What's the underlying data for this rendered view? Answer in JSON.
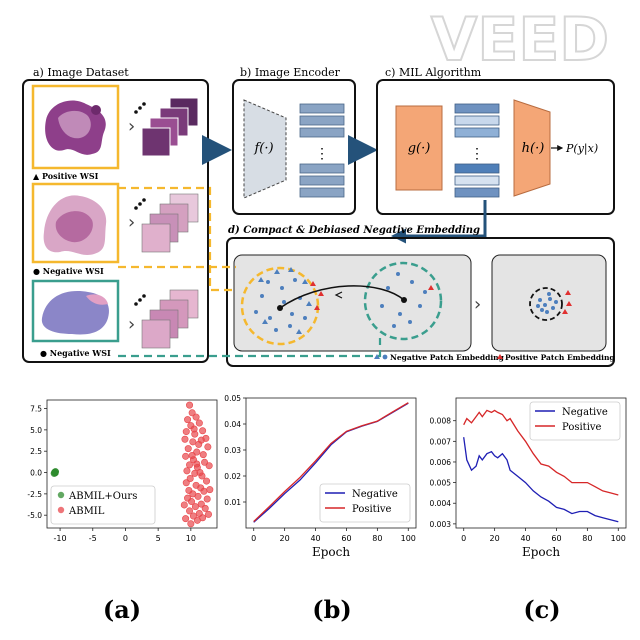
{
  "watermark": "VEED",
  "diagram": {
    "panel_a_title": "a) Image Dataset",
    "panel_b_title": "b) Image Encoder",
    "panel_c_title": "c) MIL Algorithm",
    "panel_d_title": "d) Compact & Debiased Negative Embedding",
    "wsi_labels": [
      "▲ Positive WSI",
      "● Negative WSI",
      "● Negative WSI"
    ],
    "encoder_fn": "f(·)",
    "mil_g": "g(·)",
    "mil_h": "h(·)",
    "mil_output": "P(y|x)",
    "dots": "⋮",
    "legend_negative": "Negative Patch Embedding",
    "legend_positive": "Positive Patch Embedding",
    "colors": {
      "yellow": "#f5b82e",
      "teal": "#3a9e8e",
      "navy": "#24527a",
      "orange": "#f4a676",
      "embedding_blue": "#4d7fbd",
      "positive_red": "#e03030"
    }
  },
  "bottom_labels": [
    "(a)",
    "(b)",
    "(c)"
  ],
  "chart_data": [
    {
      "type": "scatter",
      "xlim": [
        -12,
        14
      ],
      "ylim": [
        -6.5,
        8.5
      ],
      "xticks": [
        "-10",
        "-5",
        "0",
        "5",
        "10"
      ],
      "yticks": [
        "7.5",
        "5.0",
        "2.5",
        "0.0",
        "-2.5",
        "-5.0"
      ],
      "legend_position": "lower-left",
      "series": [
        {
          "name": "ABMIL+Ours",
          "color": "#2e8b2e",
          "points": [
            [
              -10.8,
              0.0
            ],
            [
              -10.7,
              0.1
            ],
            [
              -10.9,
              -0.1
            ],
            [
              -10.8,
              0.05
            ],
            [
              -10.75,
              -0.05
            ]
          ]
        },
        {
          "name": "ABMIL",
          "color": "#e8474c",
          "points": [
            [
              9.8,
              7.9
            ],
            [
              10.2,
              7.0
            ],
            [
              9.5,
              6.2
            ],
            [
              10.8,
              6.5
            ],
            [
              11.3,
              5.8
            ],
            [
              10.0,
              5.5
            ],
            [
              9.3,
              4.8
            ],
            [
              10.6,
              4.5
            ],
            [
              11.8,
              4.9
            ],
            [
              12.3,
              4.0
            ],
            [
              9.1,
              3.9
            ],
            [
              10.3,
              3.6
            ],
            [
              11.2,
              3.3
            ],
            [
              12.6,
              3.0
            ],
            [
              9.6,
              2.8
            ],
            [
              10.9,
              2.4
            ],
            [
              11.9,
              2.1
            ],
            [
              9.2,
              1.9
            ],
            [
              10.4,
              1.5
            ],
            [
              12.1,
              1.2
            ],
            [
              9.8,
              0.9
            ],
            [
              11.0,
              0.6
            ],
            [
              12.8,
              0.8
            ],
            [
              9.4,
              0.2
            ],
            [
              10.6,
              -0.1
            ],
            [
              11.7,
              -0.4
            ],
            [
              9.9,
              -0.7
            ],
            [
              12.4,
              -1.0
            ],
            [
              9.3,
              -1.2
            ],
            [
              10.8,
              -1.5
            ],
            [
              11.5,
              -1.8
            ],
            [
              9.7,
              -2.1
            ],
            [
              12.0,
              -2.2
            ],
            [
              10.3,
              -2.5
            ],
            [
              11.1,
              -2.8
            ],
            [
              9.5,
              -3.0
            ],
            [
              12.5,
              -3.1
            ],
            [
              10.1,
              -3.4
            ],
            [
              11.6,
              -3.7
            ],
            [
              9.0,
              -3.8
            ],
            [
              10.7,
              -4.0
            ],
            [
              12.2,
              -4.2
            ],
            [
              9.8,
              -4.5
            ],
            [
              11.3,
              -4.8
            ],
            [
              10.4,
              -5.1
            ],
            [
              12.7,
              -4.9
            ],
            [
              9.2,
              -5.4
            ],
            [
              11.0,
              -5.6
            ],
            [
              10.0,
              -6.0
            ],
            [
              11.8,
              -5.3
            ],
            [
              10.9,
              1.0
            ],
            [
              11.4,
              0.0
            ],
            [
              10.2,
              2.0
            ],
            [
              12.9,
              -2.0
            ],
            [
              11.6,
              3.8
            ],
            [
              10.5,
              5.1
            ]
          ]
        }
      ]
    },
    {
      "type": "line",
      "xlabel": "Epoch",
      "xlim": [
        -5,
        105
      ],
      "ylim": [
        0.0,
        0.05
      ],
      "xticks": [
        "0",
        "20",
        "40",
        "60",
        "80",
        "100"
      ],
      "yticks": [
        "0.05",
        "0.04",
        "0.03",
        "0.02",
        "0.01"
      ],
      "legend_position": "lower-right",
      "series": [
        {
          "name": "Negative",
          "color": "#1f1fb4",
          "points": [
            [
              0,
              0.0022
            ],
            [
              10,
              0.0075
            ],
            [
              20,
              0.0132
            ],
            [
              30,
              0.0185
            ],
            [
              40,
              0.025
            ],
            [
              50,
              0.032
            ],
            [
              60,
              0.037
            ],
            [
              70,
              0.0392
            ],
            [
              80,
              0.041
            ],
            [
              90,
              0.0445
            ],
            [
              100,
              0.048
            ]
          ]
        },
        {
          "name": "Positive",
          "color": "#d62728",
          "points": [
            [
              0,
              0.0025
            ],
            [
              10,
              0.0082
            ],
            [
              20,
              0.014
            ],
            [
              30,
              0.0195
            ],
            [
              40,
              0.0258
            ],
            [
              50,
              0.0325
            ],
            [
              60,
              0.0372
            ],
            [
              70,
              0.0393
            ],
            [
              80,
              0.0411
            ],
            [
              90,
              0.0447
            ],
            [
              100,
              0.0482
            ]
          ]
        }
      ]
    },
    {
      "type": "line",
      "xlabel": "Epoch",
      "xlim": [
        -5,
        105
      ],
      "ylim": [
        0.0028,
        0.0091
      ],
      "xticks": [
        "0",
        "20",
        "40",
        "60",
        "80",
        "100"
      ],
      "yticks": [
        "0.008",
        "0.007",
        "0.006",
        "0.005",
        "0.004",
        "0.003"
      ],
      "legend_position": "upper-right",
      "series": [
        {
          "name": "Negative",
          "color": "#1f1fb4",
          "points": [
            [
              0,
              0.0072
            ],
            [
              2,
              0.0061
            ],
            [
              5,
              0.0056
            ],
            [
              8,
              0.0058
            ],
            [
              10,
              0.0063
            ],
            [
              12,
              0.0061
            ],
            [
              15,
              0.0064
            ],
            [
              18,
              0.0065
            ],
            [
              20,
              0.0063
            ],
            [
              22,
              0.0062
            ],
            [
              25,
              0.0064
            ],
            [
              28,
              0.0061
            ],
            [
              30,
              0.0056
            ],
            [
              35,
              0.0053
            ],
            [
              40,
              0.005
            ],
            [
              45,
              0.0046
            ],
            [
              50,
              0.0043
            ],
            [
              55,
              0.0041
            ],
            [
              60,
              0.0038
            ],
            [
              65,
              0.0037
            ],
            [
              70,
              0.0035
            ],
            [
              75,
              0.0036
            ],
            [
              80,
              0.0036
            ],
            [
              85,
              0.0034
            ],
            [
              90,
              0.0033
            ],
            [
              95,
              0.0032
            ],
            [
              100,
              0.0031
            ]
          ]
        },
        {
          "name": "Positive",
          "color": "#d62728",
          "points": [
            [
              0,
              0.0078
            ],
            [
              2,
              0.0081
            ],
            [
              5,
              0.0079
            ],
            [
              8,
              0.0082
            ],
            [
              10,
              0.0084
            ],
            [
              12,
              0.0082
            ],
            [
              15,
              0.0085
            ],
            [
              18,
              0.0084
            ],
            [
              20,
              0.0085
            ],
            [
              22,
              0.0084
            ],
            [
              25,
              0.0083
            ],
            [
              28,
              0.008
            ],
            [
              30,
              0.0081
            ],
            [
              35,
              0.0075
            ],
            [
              40,
              0.007
            ],
            [
              45,
              0.0064
            ],
            [
              50,
              0.0059
            ],
            [
              55,
              0.0058
            ],
            [
              60,
              0.0055
            ],
            [
              65,
              0.0053
            ],
            [
              70,
              0.005
            ],
            [
              75,
              0.005
            ],
            [
              80,
              0.005
            ],
            [
              85,
              0.0048
            ],
            [
              90,
              0.0046
            ],
            [
              95,
              0.0045
            ],
            [
              100,
              0.0044
            ]
          ]
        }
      ]
    }
  ]
}
